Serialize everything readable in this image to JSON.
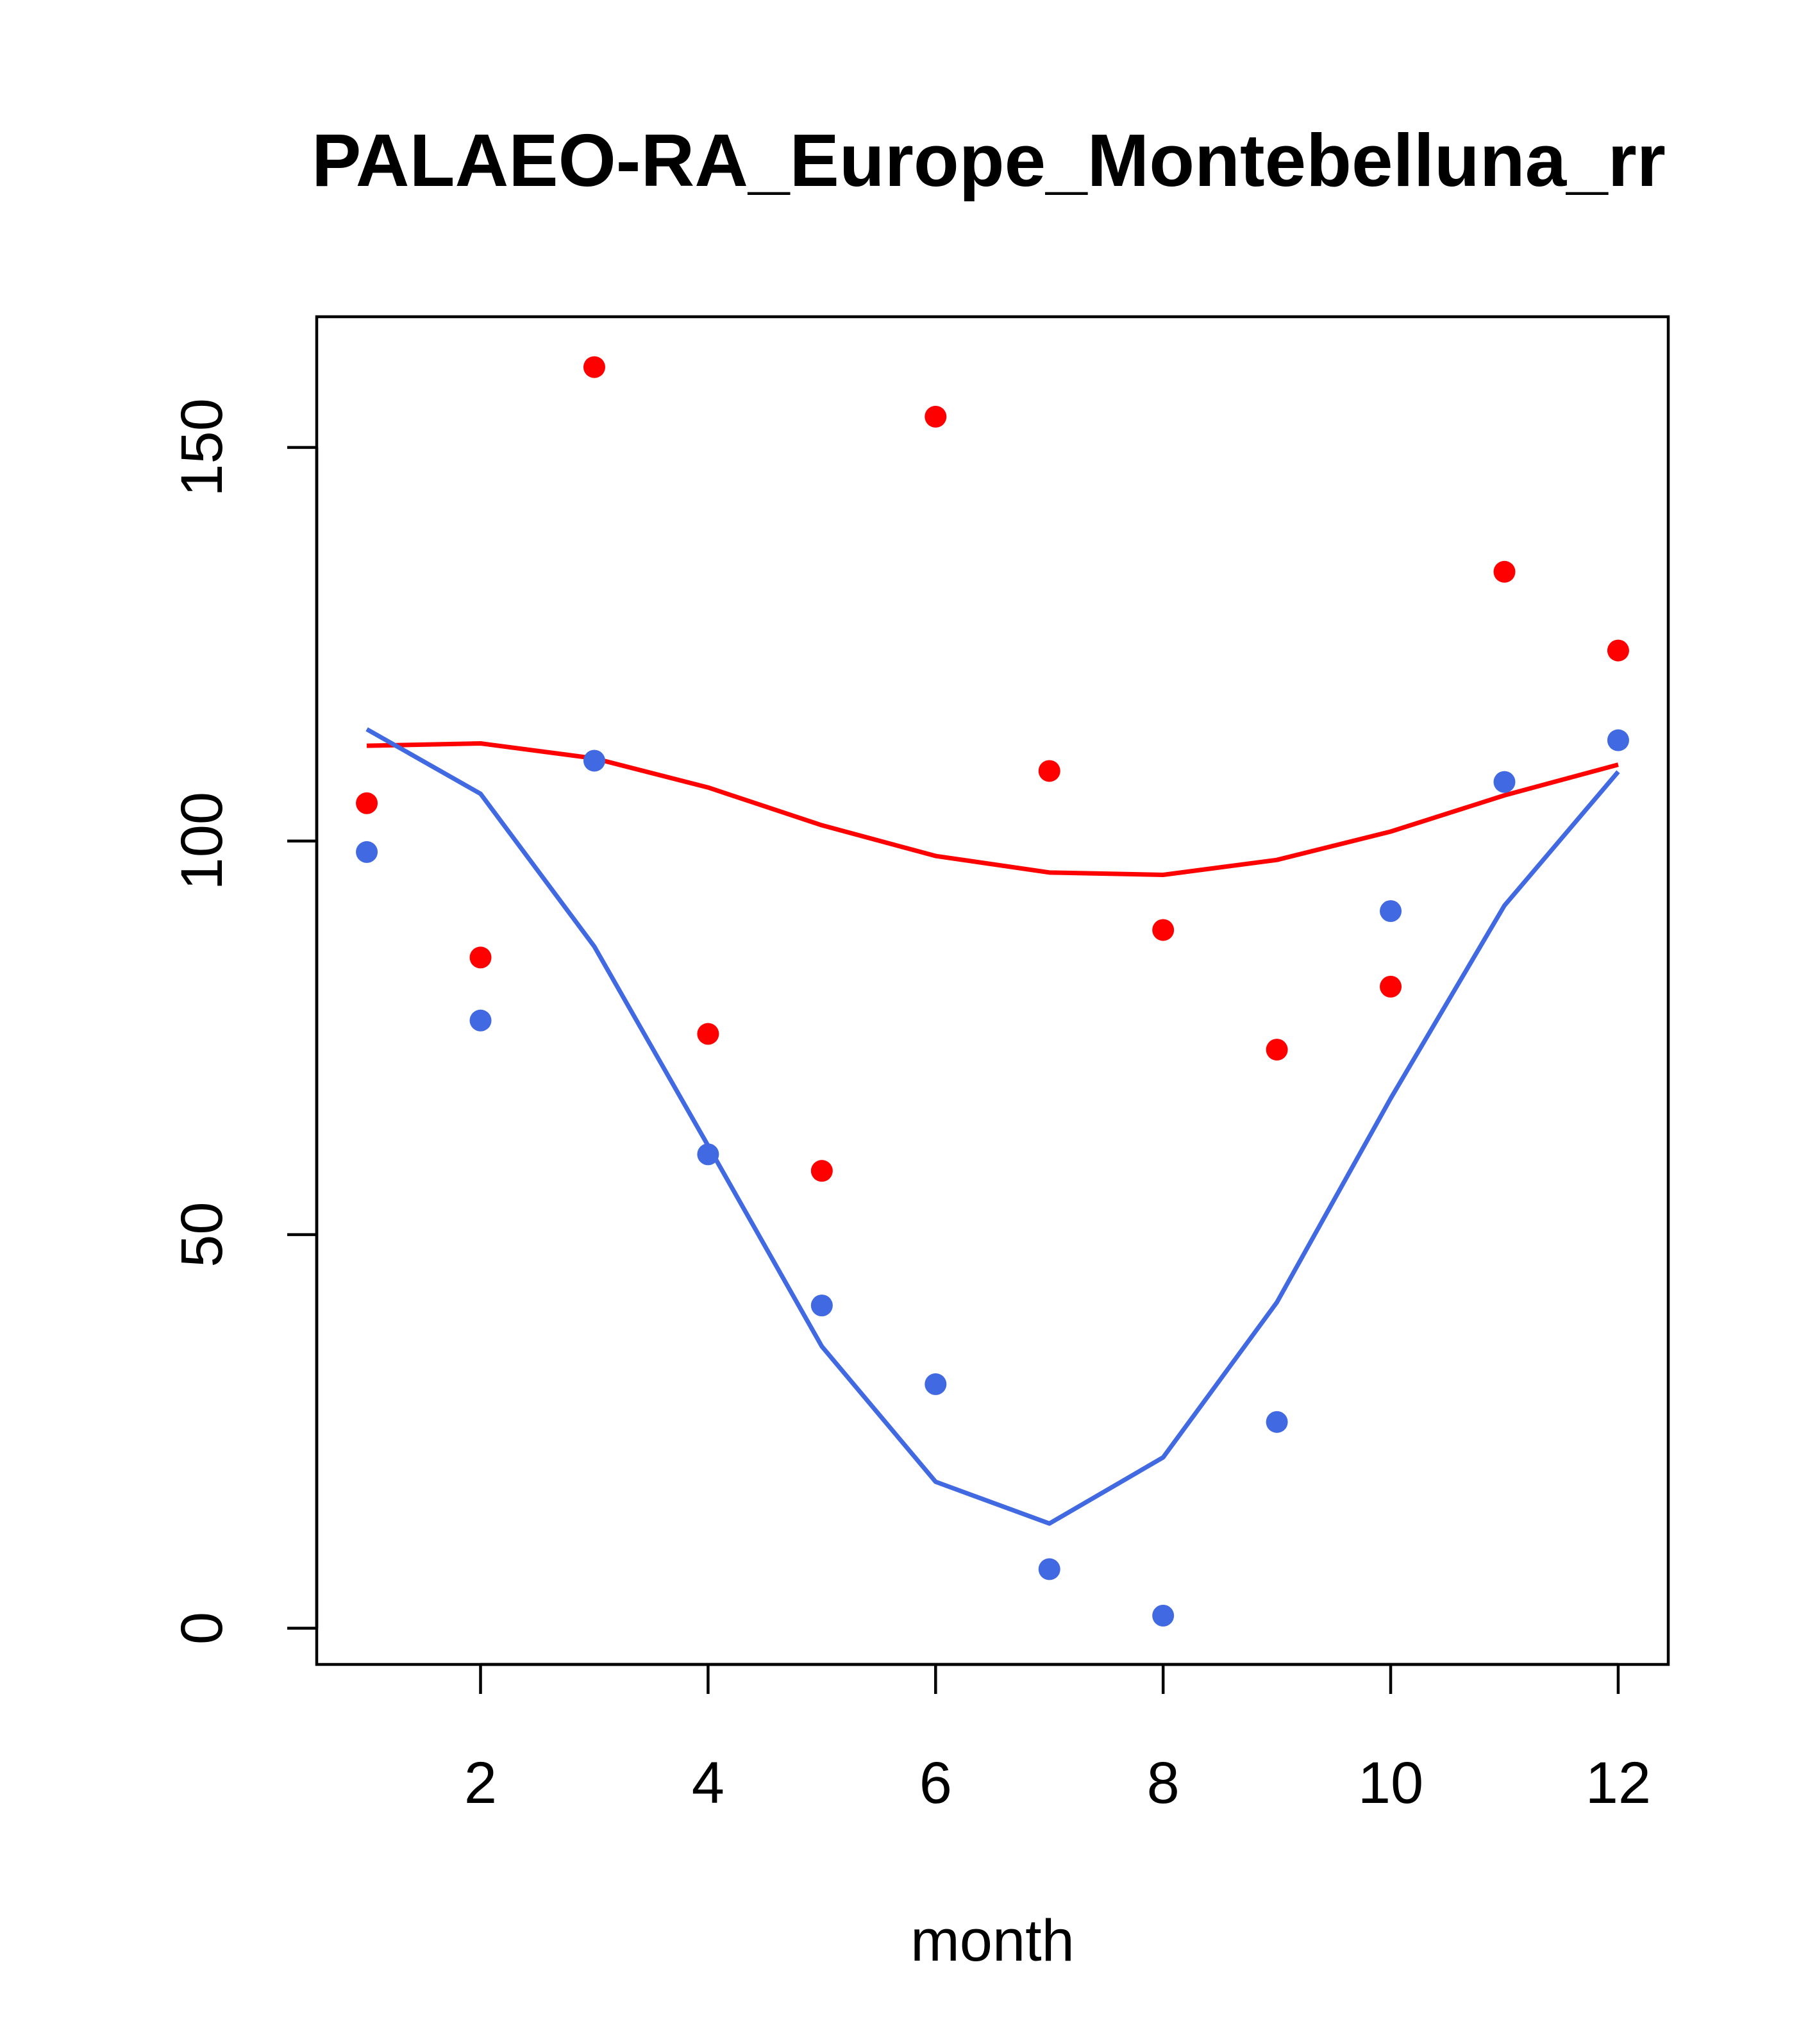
{
  "chart_data": {
    "type": "scatter",
    "title": "PALAEO-RA_Europe_Montebelluna_rr",
    "xlabel": "month",
    "ylabel": "",
    "xlim": [
      0.56,
      12.44
    ],
    "ylim": [
      -4.6,
      166.6
    ],
    "x_ticks": [
      2,
      4,
      6,
      8,
      10,
      12
    ],
    "x_tick_labels": [
      "2",
      "4",
      "6",
      "8",
      "10",
      "12"
    ],
    "y_ticks": [
      0,
      50,
      100,
      150
    ],
    "y_tick_labels": [
      "0",
      "50",
      "100",
      "150"
    ],
    "grid": false,
    "legend": "none",
    "x": [
      1,
      2,
      3,
      4,
      5,
      6,
      7,
      8,
      9,
      10,
      11,
      12
    ],
    "series": [
      {
        "color": "#ff0000",
        "points": [
          104.8,
          85.2,
          160.2,
          75.5,
          58.1,
          153.9,
          108.9,
          88.7,
          73.5,
          81.5,
          134.2,
          124.2
        ],
        "line": [
          112.1,
          112.4,
          110.5,
          106.8,
          102.0,
          98.1,
          96.0,
          95.7,
          97.6,
          101.2,
          105.8,
          109.7
        ]
      },
      {
        "color": "#4169e1",
        "points": [
          98.6,
          77.2,
          110.2,
          60.2,
          41.0,
          31.0,
          7.5,
          1.6,
          26.2,
          91.1,
          107.5,
          112.8
        ],
        "line": [
          114.2,
          106.0,
          86.6,
          61.3,
          35.8,
          18.6,
          13.3,
          21.7,
          41.4,
          67.3,
          91.8,
          108.8
        ]
      }
    ]
  }
}
